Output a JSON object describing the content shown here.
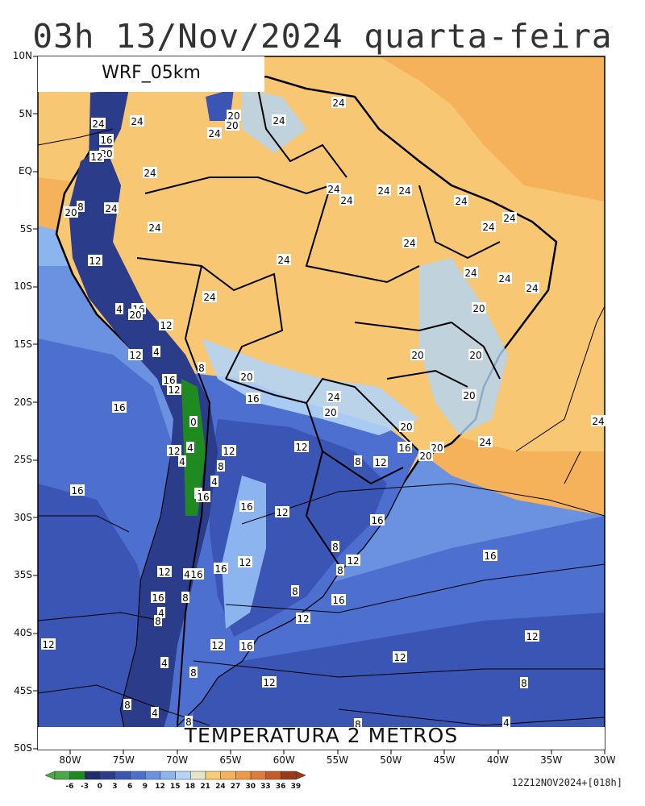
{
  "header": {
    "title": "03h 13/Nov/2024 quarta-feira"
  },
  "model_label": "WRF_05km",
  "variable_label": "TEMPERATURA 2 METROS",
  "run_info": "12Z12NOV2024+[018h]",
  "axes": {
    "lat_labels": [
      "10N",
      "5N",
      "EQ",
      "5S",
      "10S",
      "15S",
      "20S",
      "25S",
      "30S",
      "35S",
      "40S",
      "45S",
      "50S"
    ],
    "lon_labels": [
      "80W",
      "75W",
      "70W",
      "65W",
      "60W",
      "55W",
      "50W",
      "45W",
      "40W",
      "35W",
      "30W"
    ]
  },
  "colorbar": {
    "labels": [
      "-6",
      "-3",
      "0",
      "3",
      "6",
      "9",
      "12",
      "15",
      "18",
      "21",
      "24",
      "27",
      "30",
      "33",
      "36",
      "39"
    ],
    "colors": [
      "#4aa846",
      "#1f8a1f",
      "#1f2d6b",
      "#2b3d8a",
      "#3a55b3",
      "#4d70d0",
      "#6a92e0",
      "#8cb4ef",
      "#b2d4f6",
      "#e4e4c8",
      "#f7cc74",
      "#f5b25a",
      "#ef9a48",
      "#e07a3a",
      "#c85a2a",
      "#9a3a1a"
    ]
  },
  "contour_labels": [
    "24",
    "20",
    "16",
    "12",
    "8",
    "4",
    "0"
  ],
  "legend_colors": {
    "ocean_warm": "#f7c06a",
    "ocean_mid": "#8cb4ef",
    "ocean_cool": "#3a55b3",
    "land_warm": "#f7c774",
    "land_cool": "#4d70d0"
  }
}
